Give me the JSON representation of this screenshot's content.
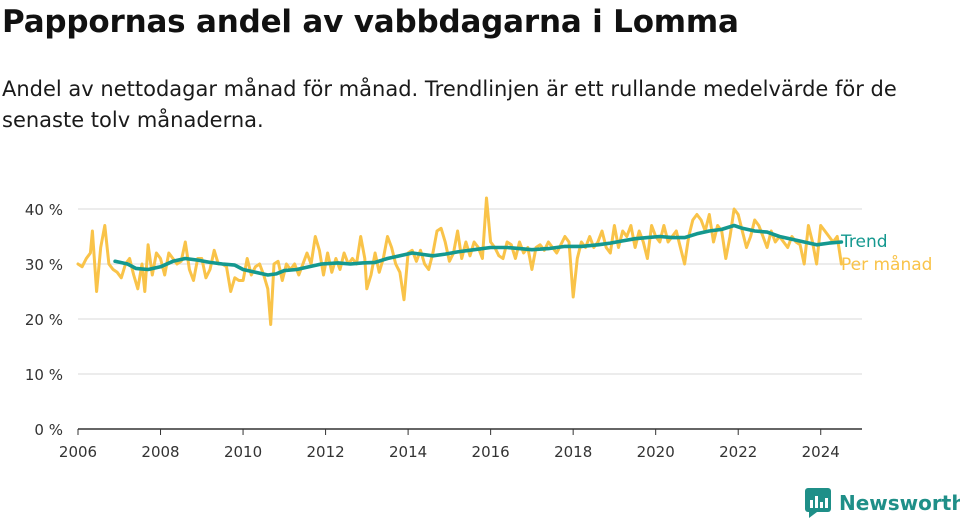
{
  "title": "Pappornas andel av vabbdagarna i Lomma",
  "subtitle": "Andel av nettodagar månad för månad. Trendlinjen är ett rullande medelvärde för de senaste tolv månaderna.",
  "brand": {
    "name": "Newsworthy",
    "icon": "newsworthy-logo-icon"
  },
  "colors": {
    "monthly": "#f9c349",
    "trend": "#14988f",
    "grid": "#d9d9d9",
    "axis": "#333333",
    "brand": "#1f8f88"
  },
  "chart_data": {
    "type": "line",
    "xlim": [
      2006,
      2025
    ],
    "ylim": [
      0,
      42
    ],
    "x_ticks": [
      2006,
      2008,
      2010,
      2012,
      2014,
      2016,
      2018,
      2020,
      2022,
      2024
    ],
    "x_tick_labels": [
      "2006",
      "2008",
      "2010",
      "2012",
      "2014",
      "2016",
      "2018",
      "2020",
      "2022",
      "2024"
    ],
    "y_ticks": [
      0,
      10,
      20,
      30,
      40
    ],
    "y_tick_labels": [
      "0 %",
      "10 %",
      "20 %",
      "30 %",
      "40 %"
    ],
    "grid": true,
    "legend": "direct labels at right end of lines",
    "series": [
      {
        "name": "Per månad",
        "color": "#f9c349",
        "points": [
          [
            2006.0,
            30.0
          ],
          [
            2006.1,
            29.5
          ],
          [
            2006.2,
            31.0
          ],
          [
            2006.3,
            32.0
          ],
          [
            2006.35,
            36.0
          ],
          [
            2006.45,
            25.0
          ],
          [
            2006.55,
            33.0
          ],
          [
            2006.65,
            37.0
          ],
          [
            2006.75,
            30.0
          ],
          [
            2006.85,
            29.0
          ],
          [
            2006.95,
            28.5
          ],
          [
            2007.05,
            27.5
          ],
          [
            2007.15,
            30.0
          ],
          [
            2007.25,
            31.0
          ],
          [
            2007.35,
            28.0
          ],
          [
            2007.45,
            25.5
          ],
          [
            2007.55,
            30.0
          ],
          [
            2007.62,
            25.0
          ],
          [
            2007.7,
            33.5
          ],
          [
            2007.8,
            28.0
          ],
          [
            2007.9,
            32.0
          ],
          [
            2008.0,
            31.0
          ],
          [
            2008.1,
            28.0
          ],
          [
            2008.2,
            32.0
          ],
          [
            2008.3,
            31.0
          ],
          [
            2008.4,
            30.0
          ],
          [
            2008.5,
            30.5
          ],
          [
            2008.6,
            34.0
          ],
          [
            2008.7,
            29.0
          ],
          [
            2008.8,
            27.0
          ],
          [
            2008.9,
            31.0
          ],
          [
            2009.0,
            31.0
          ],
          [
            2009.1,
            27.5
          ],
          [
            2009.2,
            29.0
          ],
          [
            2009.3,
            32.5
          ],
          [
            2009.4,
            30.0
          ],
          [
            2009.5,
            30.0
          ],
          [
            2009.6,
            29.5
          ],
          [
            2009.7,
            25.0
          ],
          [
            2009.8,
            27.5
          ],
          [
            2009.9,
            27.0
          ],
          [
            2010.0,
            27.0
          ],
          [
            2010.1,
            31.0
          ],
          [
            2010.2,
            28.0
          ],
          [
            2010.3,
            29.5
          ],
          [
            2010.4,
            30.0
          ],
          [
            2010.5,
            28.0
          ],
          [
            2010.6,
            25.5
          ],
          [
            2010.67,
            19.0
          ],
          [
            2010.75,
            30.0
          ],
          [
            2010.85,
            30.5
          ],
          [
            2010.95,
            27.0
          ],
          [
            2011.05,
            30.0
          ],
          [
            2011.15,
            29.0
          ],
          [
            2011.25,
            30.0
          ],
          [
            2011.35,
            28.0
          ],
          [
            2011.45,
            30.0
          ],
          [
            2011.55,
            32.0
          ],
          [
            2011.65,
            30.0
          ],
          [
            2011.75,
            35.0
          ],
          [
            2011.85,
            32.5
          ],
          [
            2011.95,
            28.0
          ],
          [
            2012.05,
            32.0
          ],
          [
            2012.15,
            28.5
          ],
          [
            2012.25,
            31.0
          ],
          [
            2012.35,
            29.0
          ],
          [
            2012.45,
            32.0
          ],
          [
            2012.55,
            30.0
          ],
          [
            2012.65,
            31.0
          ],
          [
            2012.75,
            30.0
          ],
          [
            2012.85,
            35.0
          ],
          [
            2012.95,
            31.0
          ],
          [
            2013.0,
            25.5
          ],
          [
            2013.1,
            28.0
          ],
          [
            2013.2,
            32.0
          ],
          [
            2013.3,
            28.5
          ],
          [
            2013.4,
            31.0
          ],
          [
            2013.5,
            35.0
          ],
          [
            2013.6,
            33.0
          ],
          [
            2013.7,
            30.0
          ],
          [
            2013.8,
            28.5
          ],
          [
            2013.9,
            23.5
          ],
          [
            2014.0,
            32.0
          ],
          [
            2014.1,
            32.5
          ],
          [
            2014.2,
            30.5
          ],
          [
            2014.3,
            32.5
          ],
          [
            2014.4,
            30.0
          ],
          [
            2014.5,
            29.0
          ],
          [
            2014.6,
            32.0
          ],
          [
            2014.7,
            36.0
          ],
          [
            2014.8,
            36.5
          ],
          [
            2014.9,
            34.0
          ],
          [
            2015.0,
            30.5
          ],
          [
            2015.1,
            32.0
          ],
          [
            2015.2,
            36.0
          ],
          [
            2015.3,
            31.0
          ],
          [
            2015.4,
            34.0
          ],
          [
            2015.5,
            31.5
          ],
          [
            2015.6,
            34.0
          ],
          [
            2015.7,
            33.0
          ],
          [
            2015.8,
            31.0
          ],
          [
            2015.9,
            42.0
          ],
          [
            2016.0,
            34.0
          ],
          [
            2016.1,
            33.0
          ],
          [
            2016.2,
            31.5
          ],
          [
            2016.3,
            31.0
          ],
          [
            2016.4,
            34.0
          ],
          [
            2016.5,
            33.5
          ],
          [
            2016.6,
            31.0
          ],
          [
            2016.7,
            34.0
          ],
          [
            2016.8,
            32.0
          ],
          [
            2016.9,
            33.0
          ],
          [
            2017.0,
            29.0
          ],
          [
            2017.1,
            33.0
          ],
          [
            2017.2,
            33.5
          ],
          [
            2017.3,
            32.5
          ],
          [
            2017.4,
            34.0
          ],
          [
            2017.5,
            33.0
          ],
          [
            2017.6,
            32.0
          ],
          [
            2017.7,
            33.5
          ],
          [
            2017.8,
            35.0
          ],
          [
            2017.9,
            34.0
          ],
          [
            2018.0,
            24.0
          ],
          [
            2018.1,
            31.0
          ],
          [
            2018.2,
            34.0
          ],
          [
            2018.3,
            33.0
          ],
          [
            2018.4,
            35.0
          ],
          [
            2018.5,
            33.0
          ],
          [
            2018.6,
            34.0
          ],
          [
            2018.7,
            36.0
          ],
          [
            2018.8,
            33.0
          ],
          [
            2018.9,
            32.0
          ],
          [
            2019.0,
            37.0
          ],
          [
            2019.1,
            33.0
          ],
          [
            2019.2,
            36.0
          ],
          [
            2019.3,
            35.0
          ],
          [
            2019.4,
            37.0
          ],
          [
            2019.5,
            33.0
          ],
          [
            2019.6,
            36.0
          ],
          [
            2019.7,
            34.0
          ],
          [
            2019.8,
            31.0
          ],
          [
            2019.9,
            37.0
          ],
          [
            2020.0,
            35.0
          ],
          [
            2020.1,
            34.0
          ],
          [
            2020.2,
            37.0
          ],
          [
            2020.3,
            34.0
          ],
          [
            2020.4,
            35.0
          ],
          [
            2020.5,
            36.0
          ],
          [
            2020.6,
            33.0
          ],
          [
            2020.7,
            30.0
          ],
          [
            2020.8,
            35.0
          ],
          [
            2020.9,
            38.0
          ],
          [
            2021.0,
            39.0
          ],
          [
            2021.1,
            38.0
          ],
          [
            2021.2,
            36.0
          ],
          [
            2021.3,
            39.0
          ],
          [
            2021.4,
            34.0
          ],
          [
            2021.5,
            37.0
          ],
          [
            2021.6,
            36.0
          ],
          [
            2021.7,
            31.0
          ],
          [
            2021.8,
            35.0
          ],
          [
            2021.9,
            40.0
          ],
          [
            2022.0,
            39.0
          ],
          [
            2022.1,
            36.0
          ],
          [
            2022.2,
            33.0
          ],
          [
            2022.3,
            35.0
          ],
          [
            2022.4,
            38.0
          ],
          [
            2022.5,
            37.0
          ],
          [
            2022.6,
            35.0
          ],
          [
            2022.7,
            33.0
          ],
          [
            2022.8,
            36.0
          ],
          [
            2022.9,
            34.0
          ],
          [
            2023.0,
            35.0
          ],
          [
            2023.1,
            34.0
          ],
          [
            2023.2,
            33.0
          ],
          [
            2023.3,
            35.0
          ],
          [
            2023.4,
            34.0
          ],
          [
            2023.5,
            33.5
          ],
          [
            2023.6,
            30.0
          ],
          [
            2023.7,
            37.0
          ],
          [
            2023.8,
            34.0
          ],
          [
            2023.9,
            30.0
          ],
          [
            2024.0,
            37.0
          ],
          [
            2024.1,
            36.0
          ],
          [
            2024.2,
            35.0
          ],
          [
            2024.3,
            34.0
          ],
          [
            2024.4,
            35.0
          ],
          [
            2024.5,
            30.0
          ]
        ]
      },
      {
        "name": "Trend",
        "color": "#14988f",
        "points": [
          [
            2006.9,
            30.5
          ],
          [
            2007.2,
            30.0
          ],
          [
            2007.4,
            29.2
          ],
          [
            2007.7,
            29.0
          ],
          [
            2008.0,
            29.5
          ],
          [
            2008.3,
            30.5
          ],
          [
            2008.6,
            31.0
          ],
          [
            2008.9,
            30.7
          ],
          [
            2009.2,
            30.3
          ],
          [
            2009.5,
            30.0
          ],
          [
            2009.8,
            29.8
          ],
          [
            2010.0,
            29.0
          ],
          [
            2010.3,
            28.5
          ],
          [
            2010.6,
            28.0
          ],
          [
            2010.8,
            28.2
          ],
          [
            2011.0,
            28.8
          ],
          [
            2011.3,
            29.0
          ],
          [
            2011.6,
            29.5
          ],
          [
            2011.9,
            30.0
          ],
          [
            2012.3,
            30.2
          ],
          [
            2012.6,
            30.0
          ],
          [
            2012.9,
            30.2
          ],
          [
            2013.2,
            30.3
          ],
          [
            2013.5,
            31.0
          ],
          [
            2013.8,
            31.5
          ],
          [
            2014.1,
            32.0
          ],
          [
            2014.3,
            31.8
          ],
          [
            2014.6,
            31.5
          ],
          [
            2014.9,
            31.8
          ],
          [
            2015.2,
            32.2
          ],
          [
            2015.6,
            32.6
          ],
          [
            2016.0,
            33.0
          ],
          [
            2016.4,
            33.0
          ],
          [
            2016.7,
            32.8
          ],
          [
            2017.0,
            32.6
          ],
          [
            2017.4,
            32.8
          ],
          [
            2017.8,
            33.2
          ],
          [
            2018.2,
            33.2
          ],
          [
            2018.6,
            33.5
          ],
          [
            2018.9,
            33.8
          ],
          [
            2019.2,
            34.2
          ],
          [
            2019.5,
            34.6
          ],
          [
            2019.8,
            34.8
          ],
          [
            2020.1,
            35.0
          ],
          [
            2020.4,
            34.8
          ],
          [
            2020.7,
            34.8
          ],
          [
            2021.0,
            35.5
          ],
          [
            2021.3,
            36.0
          ],
          [
            2021.6,
            36.3
          ],
          [
            2021.9,
            37.0
          ],
          [
            2022.1,
            36.5
          ],
          [
            2022.4,
            36.0
          ],
          [
            2022.7,
            35.8
          ],
          [
            2023.0,
            35.0
          ],
          [
            2023.3,
            34.5
          ],
          [
            2023.6,
            34.0
          ],
          [
            2023.9,
            33.5
          ],
          [
            2024.2,
            33.8
          ],
          [
            2024.5,
            34.0
          ]
        ]
      }
    ]
  }
}
